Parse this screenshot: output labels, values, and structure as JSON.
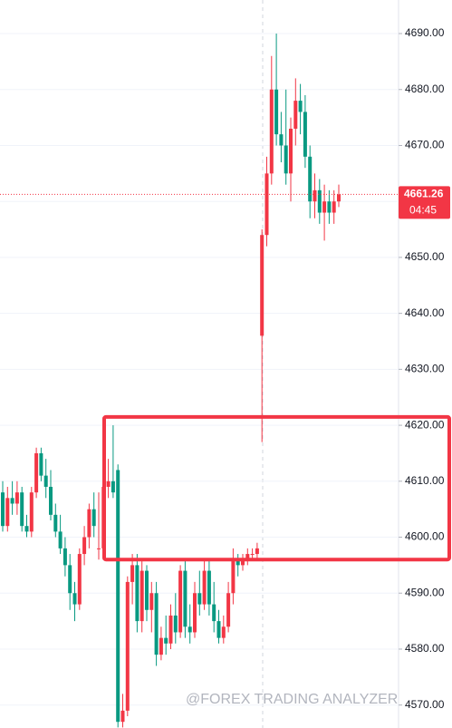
{
  "chart_data": {
    "type": "candlestick",
    "up_color": "#f23645",
    "down_color": "#089981",
    "open": [
      4608,
      4602,
      4607,
      4606,
      4608,
      4602,
      4601,
      4608,
      4615,
      4611,
      4609,
      4604,
      4601,
      4598,
      4595,
      4590,
      4588,
      4597,
      4600,
      4605,
      4598,
      4598,
      4609,
      4610,
      4612,
      4567,
      4569,
      4592,
      4595,
      4585,
      4594,
      4587,
      4590,
      4579,
      4582,
      4581,
      4586,
      4583,
      4594,
      4584,
      4583,
      4590,
      4588,
      4594,
      4588,
      4585,
      4582,
      4584,
      4590,
      4596,
      4595,
      4596,
      4597,
      4597,
      4636,
      4654,
      4665,
      4680,
      4672,
      4670,
      4665,
      4673,
      4678,
      4676,
      4668,
      4660,
      4662,
      4658,
      4660,
      4658,
      4660
    ],
    "high": [
      4610,
      4609,
      4610,
      4610,
      4609,
      4604,
      4609,
      4616,
      4616,
      4614,
      4612,
      4606,
      4604,
      4600,
      4597,
      4592,
      4598,
      4602,
      4606,
      4608,
      4608,
      4610,
      4614,
      4620,
      4613,
      4572,
      4593,
      4597,
      4597,
      4596,
      4595,
      4592,
      4592,
      4584,
      4586,
      4588,
      4590,
      4595,
      4596,
      4588,
      4592,
      4594,
      4596,
      4596,
      4592,
      4587,
      4586,
      4592,
      4598,
      4597,
      4597,
      4598,
      4598,
      4599,
      4655,
      4668,
      4686,
      4690,
      4676,
      4680,
      4675,
      4682,
      4681,
      4679,
      4670,
      4665,
      4664,
      4663,
      4662,
      4662,
      4663
    ],
    "low": [
      4601,
      4601,
      4604,
      4604,
      4601,
      4600,
      4600,
      4607,
      4610,
      4607,
      4603,
      4600,
      4597,
      4593,
      4587,
      4585,
      4587,
      4595,
      4598,
      4600,
      4596,
      4597,
      4607,
      4607,
      4566,
      4566,
      4568,
      4588,
      4583,
      4583,
      4585,
      4583,
      4577,
      4578,
      4579,
      4580,
      4581,
      4582,
      4582,
      4581,
      4582,
      4586,
      4587,
      4586,
      4583,
      4581,
      4581,
      4583,
      4588,
      4593,
      4594,
      4595,
      4596,
      4596,
      4617,
      4652,
      4663,
      4670,
      4667,
      4663,
      4660,
      4670,
      4672,
      4666,
      4657,
      4657,
      4656,
      4653,
      4656,
      4656,
      4659
    ],
    "close": [
      4602,
      4607,
      4606,
      4608,
      4602,
      4601,
      4608,
      4615,
      4611,
      4609,
      4604,
      4601,
      4598,
      4595,
      4590,
      4588,
      4597,
      4600,
      4605,
      4602,
      4598,
      4609,
      4610,
      4608,
      4567,
      4569,
      4592,
      4595,
      4585,
      4594,
      4587,
      4590,
      4579,
      4582,
      4581,
      4586,
      4583,
      4594,
      4584,
      4583,
      4590,
      4588,
      4594,
      4588,
      4585,
      4582,
      4584,
      4590,
      4596,
      4595,
      4596,
      4597,
      4597,
      4598,
      4654,
      4665,
      4680,
      4672,
      4670,
      4665,
      4673,
      4678,
      4676,
      4668,
      4660,
      4662,
      4658,
      4660,
      4658,
      4660,
      4661.26
    ],
    "ylim": [
      4565.9,
      4696.0
    ],
    "yticks": [
      {
        "value": 4570,
        "label": "4570.00"
      },
      {
        "value": 4580,
        "label": "4580.00"
      },
      {
        "value": 4590,
        "label": "4590.00"
      },
      {
        "value": 4600,
        "label": "4600.00"
      },
      {
        "value": 4610,
        "label": "4610.00"
      },
      {
        "value": 4620,
        "label": "4620.00"
      },
      {
        "value": 4630,
        "label": "4630.00"
      },
      {
        "value": 4640,
        "label": "4640.00"
      },
      {
        "value": 4650,
        "label": "4650.00"
      },
      {
        "value": 4660,
        "label": "4660.00"
      },
      {
        "value": 4670,
        "label": "4670.00"
      },
      {
        "value": 4680,
        "label": "4680.00"
      },
      {
        "value": 4690,
        "label": "4690.00"
      }
    ],
    "grid": true,
    "last_price_label": "4661.26",
    "countdown": "04:45",
    "zone": {
      "top": 4621.5,
      "bottom": 4596,
      "color": "#f23645"
    },
    "watermark": "@FOREX TRADING ANALYZER"
  }
}
